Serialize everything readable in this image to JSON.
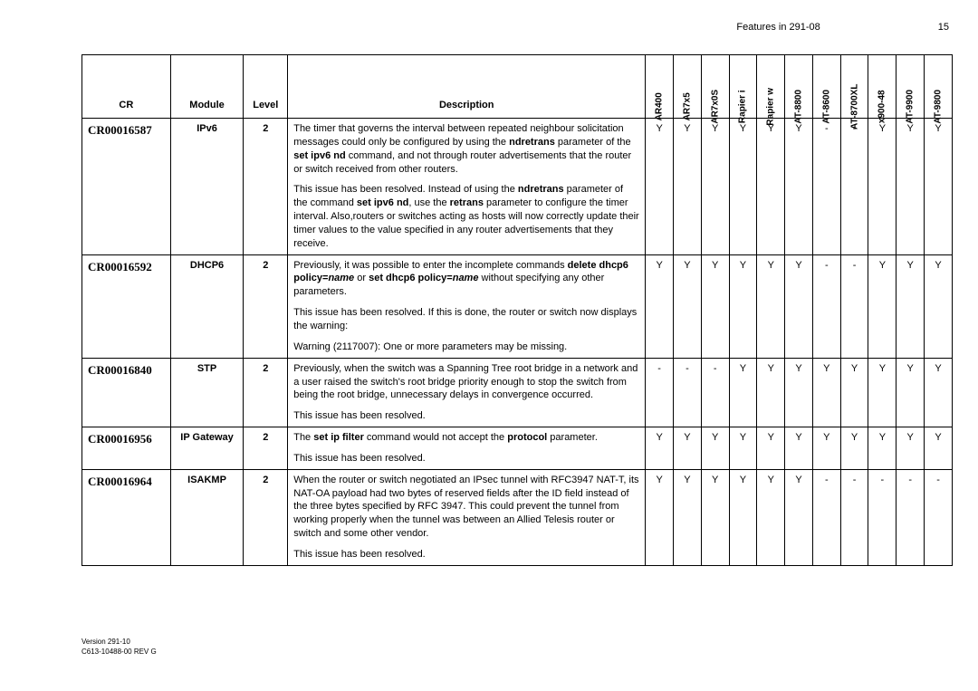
{
  "header": {
    "features_label": "Features in 291-08",
    "page_number": "15"
  },
  "table": {
    "headers": {
      "cr": "CR",
      "module": "Module",
      "level": "Level",
      "description": "Description",
      "products": [
        "AR400",
        "AR7x5",
        "AR7x0S",
        "Rapier i",
        "Rapier w",
        "AT-8800",
        "AT-8600",
        "AT-8700XL",
        "x900-48",
        "AT-9900",
        "AT-9800"
      ]
    },
    "rows": [
      {
        "cr": "CR00016587",
        "module": "IPv6",
        "level": "2",
        "description_html": "The timer that governs the interval between repeated neighbour solicitation messages could only be configured by using the <b>ndretrans</b> parameter of the <b>set ipv6 nd</b> command, and not through router advertisements that the router or switch received from other routers.|This issue has been resolved. Instead of using the <b>ndretrans</b> parameter of the command <b>set ipv6 nd</b>, use the <b>retrans</b> parameter to configure the timer interval. Also,routers or switches acting as hosts will now correctly update their timer values to the value specified in any router advertisements that they receive.",
        "cells": [
          "Y",
          "Y",
          "Y",
          "Y",
          "Y",
          "Y",
          "-",
          "-",
          "Y",
          "Y",
          "Y"
        ]
      },
      {
        "cr": "CR00016592",
        "module": "DHCP6",
        "level": "2",
        "description_html": "Previously, it was possible to enter the incomplete commands <b>delete dhcp6 policy=<i>name</i></b> or <b>set dhcp6 policy=<i>name</i></b> without specifying any other parameters.|This issue has been resolved. If this is done, the router or switch now displays the warning:|Warning (2117007): One or more parameters may be missing.",
        "cells": [
          "Y",
          "Y",
          "Y",
          "Y",
          "Y",
          "Y",
          "-",
          "-",
          "Y",
          "Y",
          "Y"
        ]
      },
      {
        "cr": "CR00016840",
        "module": "STP",
        "level": "2",
        "description_html": "Previously, when the switch was a Spanning Tree root bridge in a network and a user raised the switch's root bridge priority enough to stop the switch from being the root bridge, unnecessary delays in convergence occurred.|This issue has been resolved.",
        "cells": [
          "-",
          "-",
          "-",
          "Y",
          "Y",
          "Y",
          "Y",
          "Y",
          "Y",
          "Y",
          "Y"
        ]
      },
      {
        "cr": "CR00016956",
        "module": "IP Gateway",
        "level": "2",
        "description_html": "The <b>set ip filter</b> command would not accept the <b>protocol</b> parameter.|This issue has been resolved.",
        "cells": [
          "Y",
          "Y",
          "Y",
          "Y",
          "Y",
          "Y",
          "Y",
          "Y",
          "Y",
          "Y",
          "Y"
        ]
      },
      {
        "cr": "CR00016964",
        "module": "ISAKMP",
        "level": "2",
        "description_html": "When the router or switch negotiated an IPsec tunnel with RFC3947 NAT-T, its NAT-OA payload had two bytes of reserved fields after the ID field instead of the three bytes specified by RFC 3947. This could prevent the tunnel from working properly when the tunnel was between an Allied Telesis router or switch and some other vendor.|This issue has been resolved.",
        "cells": [
          "Y",
          "Y",
          "Y",
          "Y",
          "Y",
          "Y",
          "-",
          "-",
          "-",
          "-",
          "-"
        ]
      }
    ]
  },
  "footer": {
    "line1": "Version 291-10",
    "line2": "C613-10488-00 REV G"
  }
}
